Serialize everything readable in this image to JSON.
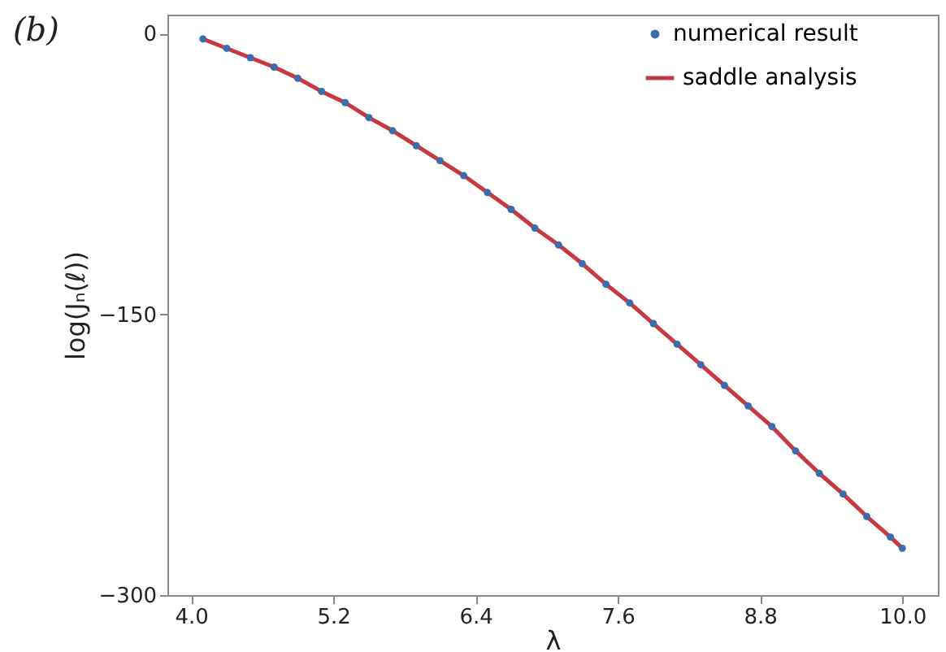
{
  "chart_data": {
    "type": "line",
    "title": "(b)",
    "xlabel": "λ",
    "ylabel": "log(Jₙ(ℓ))",
    "x": [
      4.1,
      4.3,
      4.5,
      4.7,
      4.9,
      5.1,
      5.3,
      5.5,
      5.7,
      5.9,
      6.1,
      6.3,
      6.5,
      6.7,
      6.9,
      7.1,
      7.3,
      7.5,
      7.7,
      7.9,
      8.1,
      8.3,
      8.5,
      8.7,
      8.9,
      9.1,
      9.3,
      9.5,
      9.7,
      9.9,
      10.0
    ],
    "series": [
      {
        "name": "numerical result",
        "type": "scatter",
        "color": "#3a6db0",
        "marker": "circle",
        "values": [
          -3,
          -8,
          -13,
          -18,
          -24,
          -31,
          -37,
          -45,
          -52,
          -60,
          -68,
          -76,
          -85,
          -94,
          -104,
          -113,
          -123,
          -134,
          -144,
          -155,
          -166,
          -177,
          -188,
          -199,
          -210,
          -223,
          -235,
          -246,
          -258,
          -269,
          -275
        ]
      },
      {
        "name": "saddle analysis",
        "color": "#c8393f",
        "line_style": "solid",
        "values": [
          -3,
          -8,
          -13,
          -18,
          -24,
          -31,
          -37,
          -45,
          -52,
          -60,
          -68,
          -76,
          -85,
          -94,
          -104,
          -113,
          -123,
          -134,
          -144,
          -155,
          -166,
          -177,
          -188,
          -199,
          -210,
          -223,
          -235,
          -246,
          -258,
          -269,
          -275
        ]
      }
    ],
    "xlim": [
      3.8,
      10.3
    ],
    "xticks": [
      {
        "value": 4,
        "label": "4.0"
      },
      5.2,
      6.4,
      7.6,
      8.8,
      {
        "value": 10,
        "label": "10.0"
      }
    ],
    "ylim": [
      -300,
      10
    ],
    "yticks": [
      0,
      -150,
      -300
    ],
    "grid": false,
    "legend": "top right"
  }
}
